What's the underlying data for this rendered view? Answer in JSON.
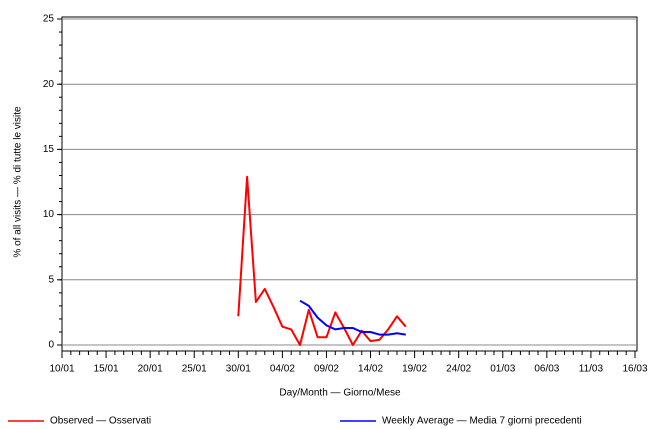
{
  "chart_data": {
    "type": "line",
    "x_label": "Day/Month — Giorno/Mese",
    "y_label": "% of all visits — % di tutte le visite",
    "categories": [
      "10/01",
      null,
      null,
      null,
      null,
      "15/01",
      null,
      null,
      null,
      null,
      "20/01",
      null,
      null,
      null,
      null,
      "25/01",
      null,
      null,
      null,
      null,
      "30/01",
      null,
      null,
      null,
      null,
      "04/02",
      null,
      null,
      null,
      null,
      "09/02",
      null,
      null,
      null,
      null,
      "14/02",
      null,
      null,
      null,
      null,
      "19/02",
      null,
      null,
      null,
      null,
      "24/02",
      null,
      null,
      null,
      null,
      "01/03",
      null,
      null,
      null,
      null,
      "06/03",
      null,
      null,
      null,
      null,
      "11/03",
      null,
      null,
      null,
      null,
      "16/03"
    ],
    "series": [
      {
        "name": "Observed — Osservati",
        "color": "#ff0000",
        "values": [
          null,
          null,
          null,
          null,
          null,
          null,
          null,
          null,
          null,
          null,
          null,
          null,
          null,
          null,
          null,
          null,
          null,
          null,
          null,
          null,
          2.2,
          12.9,
          3.3,
          4.3,
          2.9,
          1.4,
          1.2,
          0.0,
          2.7,
          0.6,
          0.6,
          2.5,
          1.3,
          0.0,
          1.1,
          0.3,
          0.4,
          1.2,
          2.2,
          1.4,
          null,
          null,
          null,
          null,
          null,
          null,
          null,
          null,
          null,
          null,
          null,
          null,
          null,
          null,
          null,
          null,
          null,
          null,
          null,
          null,
          null,
          null,
          null,
          null,
          null,
          null
        ]
      },
      {
        "name": "Weekly Average — Media 7 giorni precedenti",
        "color": "#0000ff",
        "values": [
          null,
          null,
          null,
          null,
          null,
          null,
          null,
          null,
          null,
          null,
          null,
          null,
          null,
          null,
          null,
          null,
          null,
          null,
          null,
          null,
          null,
          null,
          null,
          null,
          null,
          null,
          null,
          3.4,
          3.0,
          2.1,
          1.5,
          1.2,
          1.3,
          1.3,
          1.0,
          1.0,
          0.8,
          0.8,
          0.9,
          0.8,
          null,
          null,
          null,
          null,
          null,
          null,
          null,
          null,
          null,
          null,
          null,
          null,
          null,
          null,
          null,
          null,
          null,
          null,
          null,
          null,
          null,
          null,
          null,
          null,
          null,
          null
        ]
      }
    ],
    "ylim": [
      0,
      25
    ],
    "yticks": [
      0,
      5,
      10,
      15,
      20,
      25
    ],
    "grid": true
  }
}
